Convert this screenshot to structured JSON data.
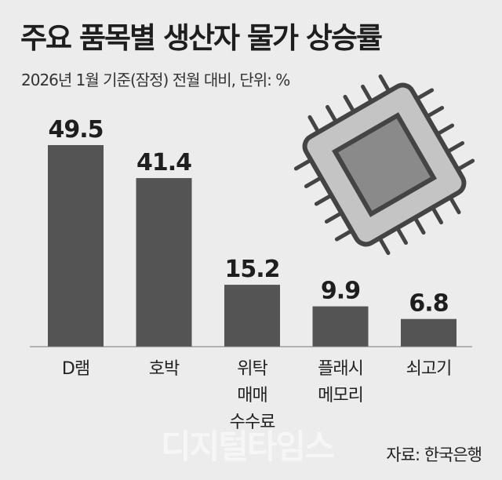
{
  "header": {
    "title": "주요 품목별 생산자 물가 상승률",
    "subtitle": "2026년 1월 기준(잠정) 전월 대비, 단위: %"
  },
  "footer": {
    "watermark": "디지털타임스",
    "source": "자료: 한국은행"
  },
  "chart_data": {
    "type": "bar",
    "title": "주요 품목별 생산자 물가 상승률",
    "subtitle": "2026년 1월 기준(잠정) 전월 대비, 단위: %",
    "categories": [
      "D램",
      "호박",
      "위탁\n매매\n수수료",
      "플래시\n메모리",
      "쇠고기"
    ],
    "values": [
      49.5,
      41.4,
      15.2,
      9.9,
      6.8
    ],
    "value_labels": [
      "49.5",
      "41.4",
      "15.2",
      "9.9",
      "6.8"
    ],
    "ylim": [
      0,
      55
    ],
    "grid": false,
    "legend": "none",
    "xlabel": "",
    "ylabel": "",
    "colors": {
      "bar": "#545454",
      "baseline": "#777777",
      "chip_body": "#c4c4c4",
      "chip_outline": "#444444",
      "chip_core": "#8a8a8a"
    }
  },
  "decoration": {
    "icon": "microchip-icon"
  }
}
